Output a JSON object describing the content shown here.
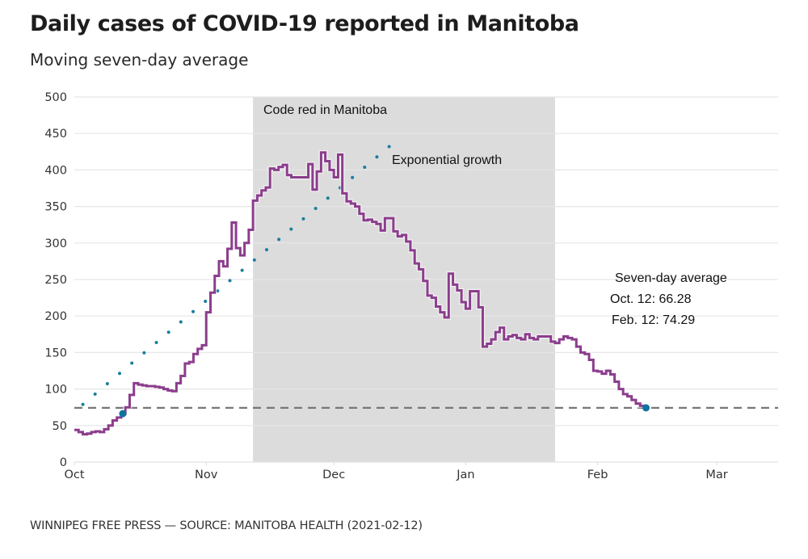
{
  "chart_data": {
    "type": "line",
    "title": "Daily cases of COVID-19 reported in Manitoba",
    "subtitle": "Moving seven-day average",
    "source": "WINNIPEG FREE PRESS — SOURCE: MANITOBA HEALTH (2021-02-12)",
    "xlabel": "",
    "ylabel": "",
    "ylim": [
      0,
      500
    ],
    "yticks": [
      0,
      50,
      100,
      150,
      200,
      250,
      300,
      350,
      400,
      450,
      500
    ],
    "x_start_date": "2020-10-01",
    "x_end_date": "2021-03-15",
    "xticks": [
      {
        "label": "Oct",
        "day": 0
      },
      {
        "label": "Nov",
        "day": 31
      },
      {
        "label": "Dec",
        "day": 61
      },
      {
        "label": "Jan",
        "day": 92
      },
      {
        "label": "Feb",
        "day": 123
      },
      {
        "label": "Mar",
        "day": 151
      }
    ],
    "grid": true,
    "series": [
      {
        "name": "Seven-day average",
        "style": "step",
        "color": "#8b3d8c",
        "start_day": 0,
        "values": [
          44,
          41,
          38,
          39,
          41,
          42,
          41,
          45,
          50,
          57,
          61,
          66,
          75,
          92,
          108,
          106,
          105,
          104,
          104,
          103,
          102,
          100,
          98,
          97,
          108,
          118,
          135,
          137,
          148,
          155,
          160,
          205,
          232,
          255,
          275,
          268,
          292,
          328,
          293,
          283,
          300,
          318,
          358,
          365,
          372,
          376,
          402,
          400,
          404,
          407,
          393,
          390,
          390,
          390,
          390,
          408,
          373,
          398,
          424,
          412,
          400,
          390,
          421,
          368,
          357,
          354,
          350,
          340,
          331,
          332,
          329,
          326,
          317,
          334,
          334,
          316,
          309,
          311,
          302,
          290,
          272,
          264,
          248,
          228,
          225,
          213,
          205,
          198,
          258,
          243,
          235,
          219,
          210,
          234,
          234,
          212,
          158,
          162,
          168,
          178,
          184,
          168,
          172,
          174,
          170,
          168,
          175,
          170,
          168,
          172,
          172,
          172,
          165,
          163,
          168,
          172,
          170,
          168,
          158,
          150,
          148,
          140,
          125,
          124,
          121,
          125,
          120,
          110,
          100,
          93,
          90,
          85,
          80,
          77,
          74.29
        ]
      },
      {
        "name": "Exponential growth",
        "style": "dotted",
        "color": "#1a7e9c",
        "start_day": 2,
        "end_day": 74,
        "start_value": 79,
        "end_value": 432
      }
    ],
    "reference_line": {
      "value": 74.29,
      "style": "dashed",
      "color": "#777777"
    },
    "highlight_points": [
      {
        "label": "Oct. 12",
        "day": 11,
        "value": 66.28
      },
      {
        "label": "Feb. 12",
        "day": 134,
        "value": 74.29
      }
    ],
    "shaded_region": {
      "label": "Code red in Manitoba",
      "start_day": 42,
      "end_day": 113,
      "color": "#dcdcdc"
    },
    "annotations": [
      {
        "text": "Code red in Manitoba"
      },
      {
        "text": "Exponential growth"
      },
      {
        "text": "Seven-day average"
      },
      {
        "text": "Oct. 12: 66.28"
      },
      {
        "text": "Feb. 12: 74.29"
      }
    ]
  }
}
